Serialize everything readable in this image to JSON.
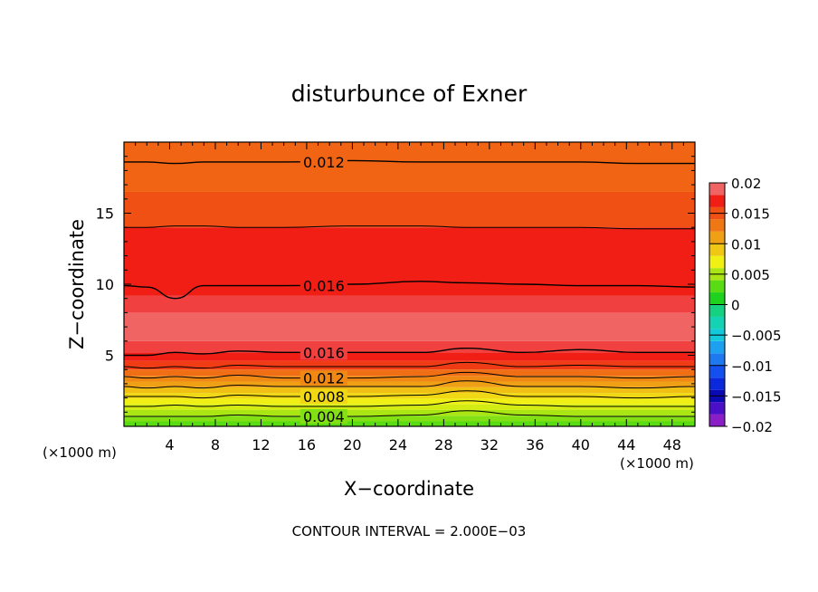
{
  "chart_data": {
    "type": "contour",
    "title": "disturbunce of Exner",
    "xlabel": "X−coordinate",
    "ylabel": "Z−coordinate",
    "x_unit_left": "(×1000 m)",
    "x_unit_right": "(×1000 m)",
    "footer": "CONTOUR INTERVAL = 2.000E−03",
    "xlim": [
      0,
      50
    ],
    "ylim": [
      0,
      20
    ],
    "x_ticks": [
      4,
      8,
      12,
      16,
      20,
      24,
      28,
      32,
      36,
      40,
      44,
      48
    ],
    "x_tick_labels": [
      "4",
      "8",
      "12",
      "16",
      "20",
      "24",
      "28",
      "32",
      "36",
      "40",
      "44",
      "48"
    ],
    "y_ticks": [
      5,
      10,
      15
    ],
    "y_tick_labels": [
      "5",
      "10",
      "15"
    ],
    "contour_interval": 0.002,
    "contour_labels": [
      {
        "text": "0.012",
        "x": 17.5,
        "z": 18.6
      },
      {
        "text": "0.016",
        "x": 17.5,
        "z": 9.9
      },
      {
        "text": "0.016",
        "x": 17.5,
        "z": 5.2
      },
      {
        "text": "0.012",
        "x": 17.5,
        "z": 3.4
      },
      {
        "text": "0.008",
        "x": 17.5,
        "z": 2.1
      },
      {
        "text": "0.004",
        "x": 17.5,
        "z": 0.7
      }
    ],
    "colorbar": {
      "range": [
        -0.02,
        0.02
      ],
      "tick_values": [
        0.02,
        0.015,
        0.01,
        0.005,
        0,
        -0.005,
        -0.01,
        -0.015,
        -0.02
      ],
      "tick_labels": [
        "0.02",
        "0.015",
        "0.01",
        "0.005",
        "0",
        "−0.005",
        "−0.01",
        "−0.015",
        "−0.02"
      ],
      "levels": [
        {
          "value": -0.019,
          "color": "#8a1fc8"
        },
        {
          "value": -0.017,
          "color": "#4a10c8"
        },
        {
          "value": -0.015,
          "color": "#0a0ab4"
        },
        {
          "value": -0.013,
          "color": "#0a28dc"
        },
        {
          "value": -0.011,
          "color": "#1450f0"
        },
        {
          "value": -0.009,
          "color": "#1e78f0"
        },
        {
          "value": -0.007,
          "color": "#1ea0f0"
        },
        {
          "value": -0.005,
          "color": "#14c8dc"
        },
        {
          "value": -0.003,
          "color": "#14d2b4"
        },
        {
          "value": -0.001,
          "color": "#14d282"
        },
        {
          "value": 0.001,
          "color": "#1ed21e"
        },
        {
          "value": 0.003,
          "color": "#5adc14"
        },
        {
          "value": 0.005,
          "color": "#aae614"
        },
        {
          "value": 0.007,
          "color": "#f0f014"
        },
        {
          "value": 0.009,
          "color": "#f0c814"
        },
        {
          "value": 0.011,
          "color": "#f0a014"
        },
        {
          "value": 0.013,
          "color": "#f07814"
        },
        {
          "value": 0.015,
          "color": "#f05014"
        },
        {
          "value": 0.017,
          "color": "#f01e14"
        },
        {
          "value": 0.019,
          "color": "#f06464"
        }
      ]
    },
    "field_bands": [
      {
        "z0": 0.0,
        "z1": 0.35,
        "color": "#5adc14"
      },
      {
        "z0": 0.35,
        "z1": 0.75,
        "color": "#82e014"
      },
      {
        "z0": 0.75,
        "z1": 1.15,
        "color": "#aae614"
      },
      {
        "z0": 1.15,
        "z1": 1.55,
        "color": "#d2ec14"
      },
      {
        "z0": 1.55,
        "z1": 1.95,
        "color": "#f0f014"
      },
      {
        "z0": 1.95,
        "z1": 2.35,
        "color": "#f0d814"
      },
      {
        "z0": 2.35,
        "z1": 2.75,
        "color": "#f0c014"
      },
      {
        "z0": 2.75,
        "z1": 3.15,
        "color": "#f0a014"
      },
      {
        "z0": 3.15,
        "z1": 3.55,
        "color": "#f08814"
      },
      {
        "z0": 3.55,
        "z1": 4.0,
        "color": "#f06e14"
      },
      {
        "z0": 4.0,
        "z1": 4.6,
        "color": "#f03c14"
      },
      {
        "z0": 4.6,
        "z1": 5.2,
        "color": "#f01e14"
      },
      {
        "z0": 5.2,
        "z1": 6.0,
        "color": "#f04040"
      },
      {
        "z0": 6.0,
        "z1": 8.0,
        "color": "#f06464"
      },
      {
        "z0": 8.0,
        "z1": 9.2,
        "color": "#f04040"
      },
      {
        "z0": 9.2,
        "z1": 14.0,
        "color": "#f01e14"
      },
      {
        "z0": 14.0,
        "z1": 16.5,
        "color": "#f05014"
      },
      {
        "z0": 16.5,
        "z1": 20.0,
        "color": "#f06414"
      }
    ],
    "contour_lines": [
      {
        "z": [
          18.6,
          18.6,
          18.5,
          18.6,
          18.6,
          18.6,
          18.7,
          18.6,
          18.6,
          18.6,
          18.6,
          18.5,
          18.5
        ]
      },
      {
        "z": [
          14.0,
          14.0,
          14.1,
          14.1,
          14.0,
          14.0,
          14.1,
          14.1,
          14.0,
          14.0,
          14.0,
          13.9,
          13.9
        ]
      },
      {
        "z": [
          9.9,
          9.8,
          9.0,
          9.9,
          9.9,
          9.9,
          10.0,
          10.2,
          10.1,
          10.0,
          9.9,
          9.9,
          9.8
        ]
      },
      {
        "z": [
          5.0,
          5.0,
          5.2,
          5.1,
          5.3,
          5.2,
          5.2,
          5.2,
          5.5,
          5.2,
          5.4,
          5.2,
          5.2
        ]
      },
      {
        "z": [
          4.2,
          4.1,
          4.2,
          4.1,
          4.3,
          4.2,
          4.2,
          4.2,
          4.5,
          4.2,
          4.3,
          4.2,
          4.2
        ]
      },
      {
        "z": [
          3.5,
          3.4,
          3.5,
          3.4,
          3.6,
          3.4,
          3.4,
          3.5,
          3.8,
          3.5,
          3.5,
          3.4,
          3.5
        ]
      },
      {
        "z": [
          2.8,
          2.7,
          2.8,
          2.7,
          2.9,
          2.8,
          2.8,
          2.8,
          3.2,
          2.8,
          2.8,
          2.7,
          2.8
        ]
      },
      {
        "z": [
          2.1,
          2.1,
          2.1,
          2.0,
          2.2,
          2.1,
          2.1,
          2.2,
          2.5,
          2.1,
          2.1,
          2.0,
          2.1
        ]
      },
      {
        "z": [
          1.4,
          1.4,
          1.5,
          1.4,
          1.5,
          1.4,
          1.4,
          1.5,
          1.8,
          1.5,
          1.4,
          1.4,
          1.4
        ]
      },
      {
        "z": [
          0.7,
          0.7,
          0.7,
          0.7,
          0.8,
          0.7,
          0.7,
          0.8,
          1.1,
          0.8,
          0.7,
          0.7,
          0.7
        ]
      }
    ],
    "contour_x": [
      0,
      2,
      4.5,
      7,
      10,
      14,
      20,
      26,
      30,
      35,
      40,
      45,
      50
    ]
  }
}
